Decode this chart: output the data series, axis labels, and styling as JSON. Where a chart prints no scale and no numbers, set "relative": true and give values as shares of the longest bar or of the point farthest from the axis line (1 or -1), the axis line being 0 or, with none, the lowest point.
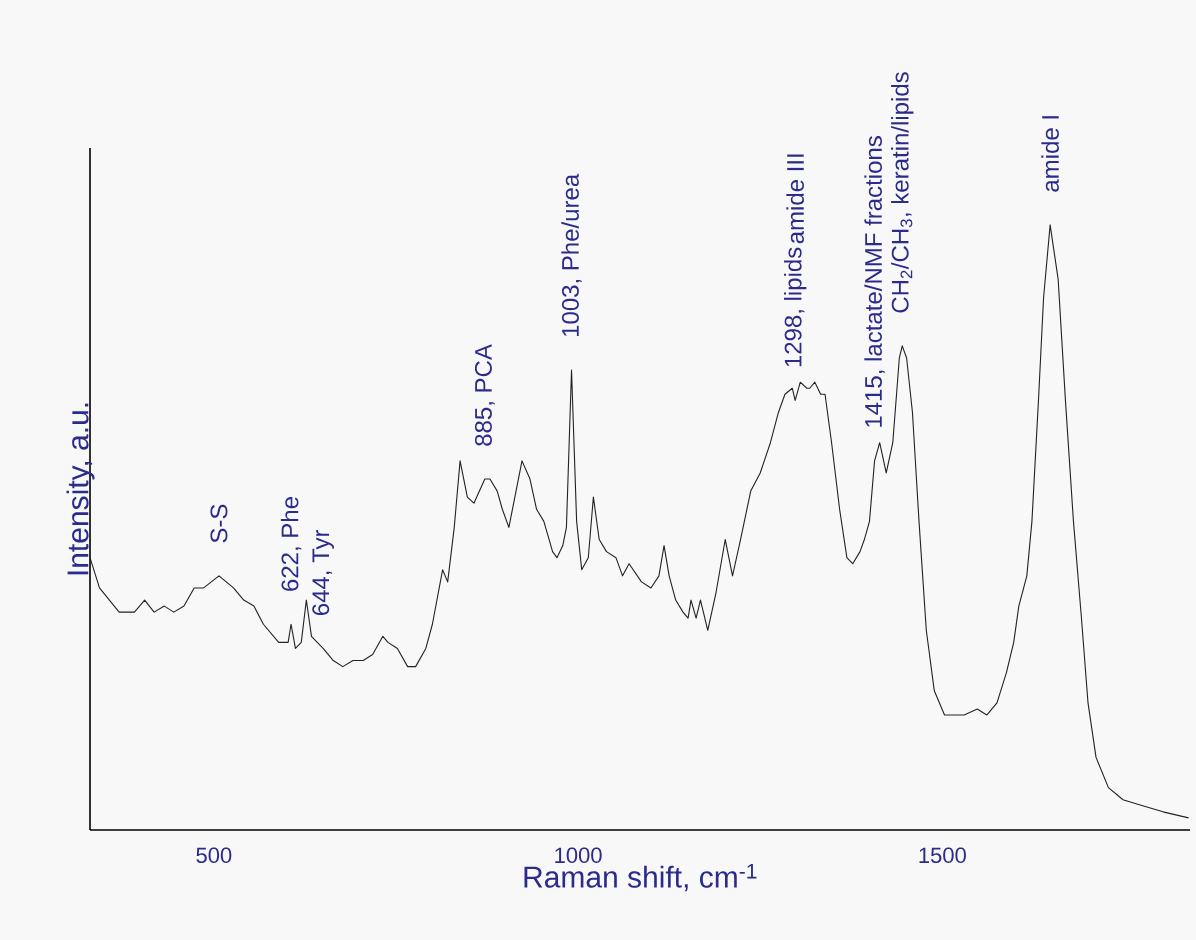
{
  "chart_data": {
    "type": "line",
    "relative": true,
    "xlabel": "Raman shift, cm$^{-1}$",
    "ylabel": "Intensity, a.u.",
    "xlim": [
      330,
      1840
    ],
    "xticks": [
      500,
      1000,
      1500
    ],
    "series": [
      {
        "color": "#222222",
        "x": [
          330,
          343,
          370,
          391,
          405,
          418,
          432,
          445,
          459,
          473,
          486,
          507,
          527,
          541,
          555,
          568,
          589,
          602,
          606,
          612,
          620,
          627,
          634,
          650,
          664,
          677,
          691,
          705,
          718,
          732,
          739,
          752,
          766,
          777,
          791,
          800,
          814,
          821,
          830,
          838,
          848,
          857,
          872,
          879,
          889,
          896,
          905,
          923,
          934,
          943,
          953,
          965,
          971,
          979,
          984,
          991,
          998,
          1005,
          1014,
          1021,
          1029,
          1039,
          1052,
          1061,
          1070,
          1087,
          1100,
          1111,
          1118,
          1125,
          1134,
          1144,
          1151,
          1155,
          1162,
          1168,
          1172,
          1178,
          1189,
          1202,
          1212,
          1223,
          1237,
          1250,
          1264,
          1275,
          1284,
          1294,
          1298,
          1305,
          1314,
          1318,
          1325,
          1333,
          1339,
          1348,
          1359,
          1369,
          1377,
          1387,
          1393,
          1400,
          1407,
          1414,
          1423,
          1432,
          1441,
          1445,
          1451,
          1459,
          1468,
          1478,
          1489,
          1503,
          1516,
          1523,
          1530,
          1548,
          1561,
          1575,
          1588,
          1598,
          1605,
          1616,
          1623,
          1632,
          1639,
          1648,
          1659,
          1669,
          1680,
          1691,
          1700,
          1711,
          1728,
          1748,
          1775,
          1803,
          1838
        ],
        "values": [
          0.45,
          0.4,
          0.36,
          0.36,
          0.38,
          0.36,
          0.37,
          0.36,
          0.37,
          0.4,
          0.4,
          0.42,
          0.4,
          0.38,
          0.37,
          0.34,
          0.31,
          0.31,
          0.34,
          0.3,
          0.31,
          0.38,
          0.32,
          0.3,
          0.28,
          0.27,
          0.28,
          0.28,
          0.29,
          0.32,
          0.31,
          0.3,
          0.27,
          0.27,
          0.3,
          0.34,
          0.43,
          0.41,
          0.5,
          0.61,
          0.55,
          0.54,
          0.58,
          0.58,
          0.56,
          0.53,
          0.5,
          0.61,
          0.58,
          0.53,
          0.51,
          0.46,
          0.45,
          0.47,
          0.5,
          0.76,
          0.51,
          0.43,
          0.45,
          0.55,
          0.48,
          0.46,
          0.45,
          0.42,
          0.44,
          0.41,
          0.4,
          0.42,
          0.47,
          0.42,
          0.38,
          0.36,
          0.35,
          0.38,
          0.35,
          0.38,
          0.36,
          0.33,
          0.39,
          0.48,
          0.42,
          0.48,
          0.56,
          0.59,
          0.64,
          0.69,
          0.72,
          0.73,
          0.71,
          0.74,
          0.73,
          0.73,
          0.74,
          0.72,
          0.72,
          0.64,
          0.53,
          0.45,
          0.44,
          0.46,
          0.48,
          0.51,
          0.61,
          0.64,
          0.59,
          0.64,
          0.78,
          0.8,
          0.78,
          0.69,
          0.51,
          0.33,
          0.23,
          0.19,
          0.19,
          0.19,
          0.19,
          0.2,
          0.19,
          0.21,
          0.26,
          0.31,
          0.37,
          0.42,
          0.51,
          0.71,
          0.88,
          1,
          0.91,
          0.71,
          0.51,
          0.35,
          0.21,
          0.12,
          0.07,
          0.05,
          0.04,
          0.03,
          0.02
        ]
      }
    ],
    "annotations": [
      {
        "text": "S-S",
        "x": 507,
        "y": 0.42
      },
      {
        "text": "622, Phe",
        "x": 606,
        "y": 0.34
      },
      {
        "text": "644, Tyr",
        "x": 650,
        "y": 0.3
      },
      {
        "text": "885, PCA",
        "x": 872,
        "y": 0.58
      },
      {
        "text": "1003, Phe/urea",
        "x": 991,
        "y": 0.76
      },
      {
        "text": "1298, lipids",
        "x": 1298,
        "y": 0.71
      },
      "amide III",
      {
        "text": "1415, lactate/NMF fractions",
        "x": 1407,
        "y": 0.61
      },
      {
        "text": "CH$_{2}$/CH$_{3}$, keratin/lipids",
        "x": 1445,
        "y": 0.8
      },
      {
        "text": "amide I",
        "x": 1648,
        "y": 1
      }
    ]
  }
}
